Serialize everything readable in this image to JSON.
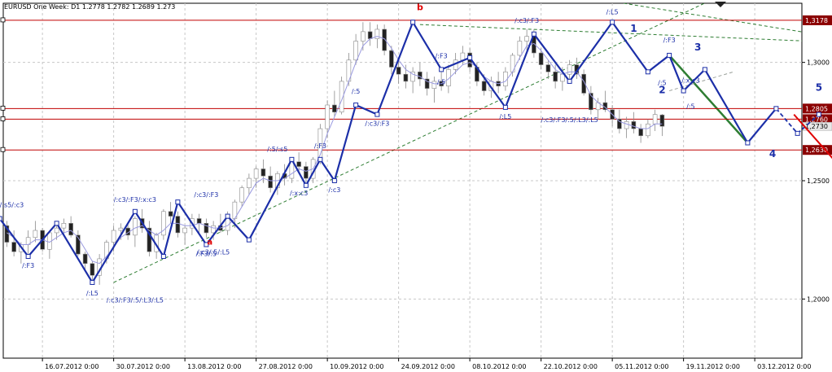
{
  "header": {
    "title": "EURUSD One Week: D1  1.2778  1.2782  1.2689  1.273"
  },
  "colors": {
    "candle_up": "#ffffff",
    "candle_down": "#222222",
    "zigzag": "#1c2fa8",
    "level_line": "#c00000",
    "trend_line": "#2e7d32",
    "arrow": "#e00000",
    "badge": "#8b0000",
    "grid": "#c8c8c8",
    "ma": "#9a9ae0"
  },
  "chart_data": {
    "type": "candlestick",
    "symbol": "EURUSD",
    "timeframe": "D1",
    "grid": true,
    "ylim": [
      1.175,
      1.325
    ],
    "yticks": [
      1.2,
      1.25,
      1.3
    ],
    "yticklabels": [
      "1,2000",
      "1,2500",
      "1,3000"
    ],
    "x_dates": [
      "16.07.2012 0:00",
      "30.07.2012 0:00",
      "13.08.2012 0:00",
      "27.08.2012 0:00",
      "10.09.2012 0:00",
      "24.09.2012 0:00",
      "08.10.2012 0:00",
      "22.10.2012 0:00",
      "05.11.2012 0:00",
      "19.11.2012 0:00",
      "03.12.2012 0:00"
    ],
    "x_date_index": [
      5,
      15,
      25,
      35,
      45,
      55,
      65,
      75,
      85,
      95,
      105
    ],
    "n_slots": 113,
    "ohlc": [
      [
        1.231,
        1.233,
        1.222,
        1.224
      ],
      [
        1.224,
        1.229,
        1.218,
        1.22
      ],
      [
        1.22,
        1.224,
        1.215,
        1.223
      ],
      [
        1.223,
        1.229,
        1.218,
        1.226
      ],
      [
        1.226,
        1.233,
        1.224,
        1.229
      ],
      [
        1.229,
        1.23,
        1.22,
        1.221
      ],
      [
        1.221,
        1.229,
        1.217,
        1.228
      ],
      [
        1.228,
        1.233,
        1.225,
        1.23
      ],
      [
        1.23,
        1.234,
        1.227,
        1.232
      ],
      [
        1.232,
        1.235,
        1.226,
        1.227
      ],
      [
        1.227,
        1.229,
        1.218,
        1.219
      ],
      [
        1.219,
        1.22,
        1.212,
        1.215
      ],
      [
        1.215,
        1.216,
        1.207,
        1.21
      ],
      [
        1.21,
        1.219,
        1.206,
        1.217
      ],
      [
        1.217,
        1.225,
        1.215,
        1.224
      ],
      [
        1.224,
        1.231,
        1.22,
        1.229
      ],
      [
        1.229,
        1.232,
        1.225,
        1.23
      ],
      [
        1.23,
        1.232,
        1.225,
        1.227
      ],
      [
        1.227,
        1.235,
        1.222,
        1.234
      ],
      [
        1.234,
        1.238,
        1.228,
        1.23
      ],
      [
        1.23,
        1.233,
        1.218,
        1.22
      ],
      [
        1.22,
        1.228,
        1.217,
        1.227
      ],
      [
        1.227,
        1.238,
        1.225,
        1.237
      ],
      [
        1.237,
        1.241,
        1.232,
        1.235
      ],
      [
        1.235,
        1.237,
        1.226,
        1.228
      ],
      [
        1.228,
        1.231,
        1.223,
        1.23
      ],
      [
        1.23,
        1.236,
        1.227,
        1.234
      ],
      [
        1.234,
        1.236,
        1.228,
        1.232
      ],
      [
        1.232,
        1.234,
        1.226,
        1.228
      ],
      [
        1.228,
        1.233,
        1.225,
        1.231
      ],
      [
        1.231,
        1.236,
        1.228,
        1.229
      ],
      [
        1.229,
        1.237,
        1.227,
        1.234
      ],
      [
        1.234,
        1.242,
        1.23,
        1.241
      ],
      [
        1.241,
        1.248,
        1.239,
        1.247
      ],
      [
        1.247,
        1.253,
        1.244,
        1.251
      ],
      [
        1.251,
        1.256,
        1.247,
        1.255
      ],
      [
        1.255,
        1.259,
        1.249,
        1.252
      ],
      [
        1.252,
        1.256,
        1.245,
        1.247
      ],
      [
        1.247,
        1.254,
        1.244,
        1.253
      ],
      [
        1.253,
        1.257,
        1.248,
        1.251
      ],
      [
        1.251,
        1.259,
        1.249,
        1.258
      ],
      [
        1.258,
        1.262,
        1.253,
        1.256
      ],
      [
        1.256,
        1.258,
        1.248,
        1.251
      ],
      [
        1.251,
        1.26,
        1.249,
        1.259
      ],
      [
        1.259,
        1.274,
        1.257,
        1.272
      ],
      [
        1.272,
        1.284,
        1.268,
        1.282
      ],
      [
        1.282,
        1.288,
        1.277,
        1.279
      ],
      [
        1.279,
        1.294,
        1.278,
        1.292
      ],
      [
        1.292,
        1.304,
        1.29,
        1.301
      ],
      [
        1.301,
        1.312,
        1.299,
        1.309
      ],
      [
        1.309,
        1.317,
        1.305,
        1.313
      ],
      [
        1.313,
        1.317,
        1.307,
        1.31
      ],
      [
        1.31,
        1.316,
        1.306,
        1.314
      ],
      [
        1.314,
        1.316,
        1.303,
        1.305
      ],
      [
        1.305,
        1.307,
        1.295,
        1.298
      ],
      [
        1.298,
        1.301,
        1.291,
        1.295
      ],
      [
        1.295,
        1.299,
        1.289,
        1.292
      ],
      [
        1.292,
        1.298,
        1.287,
        1.296
      ],
      [
        1.296,
        1.3,
        1.29,
        1.293
      ],
      [
        1.293,
        1.296,
        1.286,
        1.289
      ],
      [
        1.289,
        1.294,
        1.283,
        1.292
      ],
      [
        1.292,
        1.296,
        1.288,
        1.29
      ],
      [
        1.29,
        1.299,
        1.287,
        1.297
      ],
      [
        1.297,
        1.304,
        1.295,
        1.301
      ],
      [
        1.301,
        1.307,
        1.299,
        1.304
      ],
      [
        1.304,
        1.306,
        1.296,
        1.298
      ],
      [
        1.298,
        1.3,
        1.29,
        1.292
      ],
      [
        1.292,
        1.295,
        1.286,
        1.288
      ],
      [
        1.288,
        1.294,
        1.285,
        1.292
      ],
      [
        1.292,
        1.296,
        1.287,
        1.29
      ],
      [
        1.29,
        1.298,
        1.288,
        1.296
      ],
      [
        1.296,
        1.304,
        1.294,
        1.303
      ],
      [
        1.303,
        1.311,
        1.301,
        1.309
      ],
      [
        1.309,
        1.314,
        1.305,
        1.311
      ],
      [
        1.311,
        1.314,
        1.302,
        1.304
      ],
      [
        1.304,
        1.306,
        1.297,
        1.299
      ],
      [
        1.299,
        1.301,
        1.293,
        1.296
      ],
      [
        1.296,
        1.299,
        1.289,
        1.292
      ],
      [
        1.292,
        1.298,
        1.288,
        1.295
      ],
      [
        1.295,
        1.301,
        1.292,
        1.299
      ],
      [
        1.299,
        1.302,
        1.293,
        1.295
      ],
      [
        1.295,
        1.297,
        1.286,
        1.287
      ],
      [
        1.287,
        1.29,
        1.278,
        1.28
      ],
      [
        1.28,
        1.285,
        1.276,
        1.283
      ],
      [
        1.283,
        1.288,
        1.279,
        1.28
      ],
      [
        1.28,
        1.282,
        1.273,
        1.276
      ],
      [
        1.276,
        1.28,
        1.27,
        1.272
      ],
      [
        1.272,
        1.277,
        1.268,
        1.275
      ],
      [
        1.275,
        1.279,
        1.27,
        1.272
      ],
      [
        1.272,
        1.274,
        1.266,
        1.269
      ],
      [
        1.269,
        1.276,
        1.268,
        1.274
      ],
      [
        1.274,
        1.28,
        1.271,
        1.278
      ],
      [
        1.2778,
        1.2782,
        1.2689,
        1.273
      ]
    ],
    "ma": [
      1.228,
      1.226,
      1.223,
      1.223,
      1.225,
      1.225,
      1.224,
      1.226,
      1.228,
      1.229,
      1.226,
      1.221,
      1.216,
      1.215,
      1.218,
      1.222,
      1.226,
      1.228,
      1.23,
      1.231,
      1.229,
      1.227,
      1.229,
      1.232,
      1.232,
      1.231,
      1.231,
      1.232,
      1.231,
      1.23,
      1.23,
      1.231,
      1.234,
      1.239,
      1.244,
      1.249,
      1.251,
      1.25,
      1.25,
      1.251,
      1.253,
      1.255,
      1.254,
      1.255,
      1.261,
      1.27,
      1.277,
      1.284,
      1.292,
      1.3,
      1.307,
      1.31,
      1.311,
      1.31,
      1.306,
      1.301,
      1.297,
      1.295,
      1.294,
      1.292,
      1.291,
      1.291,
      1.293,
      1.296,
      1.299,
      1.3,
      1.298,
      1.294,
      1.292,
      1.291,
      1.292,
      1.296,
      1.302,
      1.307,
      1.308,
      1.305,
      1.301,
      1.297,
      1.295,
      1.296,
      1.296,
      1.292,
      1.286,
      1.283,
      1.281,
      1.278,
      1.275,
      1.274,
      1.273,
      1.272,
      1.272,
      1.274,
      1.274
    ],
    "levels": [
      {
        "value": 1.3178,
        "label": "1,3178"
      },
      {
        "value": 1.2805,
        "label": "1,2805"
      },
      {
        "value": 1.276,
        "label": "1,2760"
      },
      {
        "value": 1.263,
        "label": "1,2630"
      }
    ],
    "current_price": 1.273,
    "current_price_label": "1,2730",
    "zigzag": [
      [
        -1,
        1.234
      ],
      [
        3,
        1.218
      ],
      [
        7,
        1.232
      ],
      [
        12,
        1.207
      ],
      [
        18,
        1.237
      ],
      [
        22,
        1.218
      ],
      [
        24,
        1.241
      ],
      [
        28,
        1.223
      ],
      [
        31,
        1.235
      ],
      [
        34,
        1.225
      ],
      [
        40,
        1.259
      ],
      [
        42,
        1.248
      ],
      [
        44,
        1.259
      ],
      [
        46,
        1.25
      ],
      [
        49,
        1.282
      ],
      [
        52,
        1.278
      ],
      [
        57,
        1.317
      ],
      [
        61,
        1.297
      ],
      [
        65,
        1.302
      ],
      [
        70,
        1.281
      ],
      [
        74,
        1.312
      ],
      [
        79,
        1.292
      ],
      [
        85,
        1.317
      ],
      [
        90,
        1.296
      ],
      [
        93,
        1.303
      ],
      [
        95,
        1.288
      ],
      [
        98,
        1.297
      ],
      [
        104,
        1.266
      ],
      [
        108,
        1.2805
      ],
      [
        111,
        1.27
      ],
      [
        114,
        1.278
      ]
    ],
    "zigzag_dashed_from": 28,
    "zigzag_labels": [
      {
        "i": -1,
        "v": 1.234,
        "text": "/:L5/:s5/:s5/:c3",
        "dy": -14
      },
      {
        "i": 3,
        "v": 1.218,
        "text": "/:F3",
        "dy": 14
      },
      {
        "i": 12,
        "v": 1.207,
        "text": "/:L5",
        "dy": 16
      },
      {
        "i": 18,
        "v": 1.237,
        "text": "/:c3/:F3/:x:c3",
        "dy": -12
      },
      {
        "i": 18,
        "v": 1.215,
        "text": "/:c3/:F3/:5/:L3/:L5",
        "dy": 48
      },
      {
        "i": 28,
        "v": 1.223,
        "text": "/:F3/:5",
        "dy": 14
      },
      {
        "i": 29,
        "v": 1.223,
        "text": "/:c3/:5/:L5",
        "dy": 12
      },
      {
        "i": 28,
        "v": 1.237,
        "text": "/:c3/:F3",
        "dy": -18
      },
      {
        "i": 38,
        "v": 1.259,
        "text": "/:5/:s5",
        "dy": -10
      },
      {
        "i": 41,
        "v": 1.248,
        "text": "/:x:c3",
        "dy": 12
      },
      {
        "i": 44,
        "v": 1.259,
        "text": "/:F3",
        "dy": -14
      },
      {
        "i": 46,
        "v": 1.25,
        "text": "/:c3",
        "dy": 14
      },
      {
        "i": 49,
        "v": 1.282,
        "text": "/:5",
        "dy": -14
      },
      {
        "i": 52,
        "v": 1.278,
        "text": "/:c3/:F3",
        "dy": 14
      },
      {
        "i": 61,
        "v": 1.297,
        "text": "/:F3",
        "dy": -14
      },
      {
        "i": 61,
        "v": 1.297,
        "text": "/:5",
        "dy": 18
      },
      {
        "i": 70,
        "v": 1.281,
        "text": "/:L5",
        "dy": 14
      },
      {
        "i": 73,
        "v": 1.312,
        "text": "/:c3/:F3",
        "dy": -14
      },
      {
        "i": 79,
        "v": 1.292,
        "text": "/:c3/:F3/:5/:L3/:L5",
        "dy": 50
      },
      {
        "i": 85,
        "v": 1.317,
        "text": "/:L5",
        "dy": -10
      },
      {
        "i": 93,
        "v": 1.303,
        "text": "/:F3",
        "dy": -16
      },
      {
        "i": 92,
        "v": 1.296,
        "text": "/:5",
        "dy": 16
      },
      {
        "i": 96,
        "v": 1.288,
        "text": "/:x:c3",
        "dy": -10
      },
      {
        "i": 96,
        "v": 1.288,
        "text": "/:5",
        "dy": 22
      }
    ],
    "annotations": [
      {
        "text": "b",
        "i": 58,
        "v": 1.322,
        "color": "#e00000",
        "size": 11,
        "bold": true
      },
      {
        "text": "a",
        "i": 28.5,
        "v": 1.223,
        "color": "#e00000",
        "size": 10,
        "bold": true
      },
      {
        "text": "1",
        "i": 88,
        "v": 1.313,
        "color": "#1c2fa8",
        "size": 12,
        "bold": true
      },
      {
        "text": "2",
        "i": 92,
        "v": 1.287,
        "color": "#1c2fa8",
        "size": 12,
        "bold": true
      },
      {
        "text": "3",
        "i": 97,
        "v": 1.305,
        "color": "#1c2fa8",
        "size": 12,
        "bold": true
      },
      {
        "text": "4",
        "i": 107.5,
        "v": 1.26,
        "color": "#1c2fa8",
        "size": 12,
        "bold": true
      },
      {
        "text": "5",
        "i": 114,
        "v": 1.288,
        "color": "#1c2fa8",
        "size": 12,
        "bold": true
      }
    ],
    "trend_lines": [
      {
        "from": [
          15,
          1.207
        ],
        "to": [
          112,
          1.345
        ],
        "color": "#2e7d32",
        "dashed": true
      },
      {
        "from": [
          58,
          1.316
        ],
        "to": [
          128,
          1.307
        ],
        "color": "#2e7d32",
        "dashed": true
      },
      {
        "from": [
          70,
          1.333
        ],
        "to": [
          128,
          1.305
        ],
        "color": "#2e7d32",
        "dashed": true
      },
      {
        "from": [
          93,
          1.303
        ],
        "to": [
          104,
          1.266
        ],
        "color": "#2e7d32",
        "dashed": false
      },
      {
        "from": [
          93,
          1.288
        ],
        "to": [
          102,
          1.296
        ],
        "color": "#9aa09a",
        "dashed": true
      }
    ],
    "arrow": {
      "from": [
        110.5,
        1.278
      ],
      "to": [
        119,
        1.249
      ],
      "color": "#e00000"
    }
  }
}
